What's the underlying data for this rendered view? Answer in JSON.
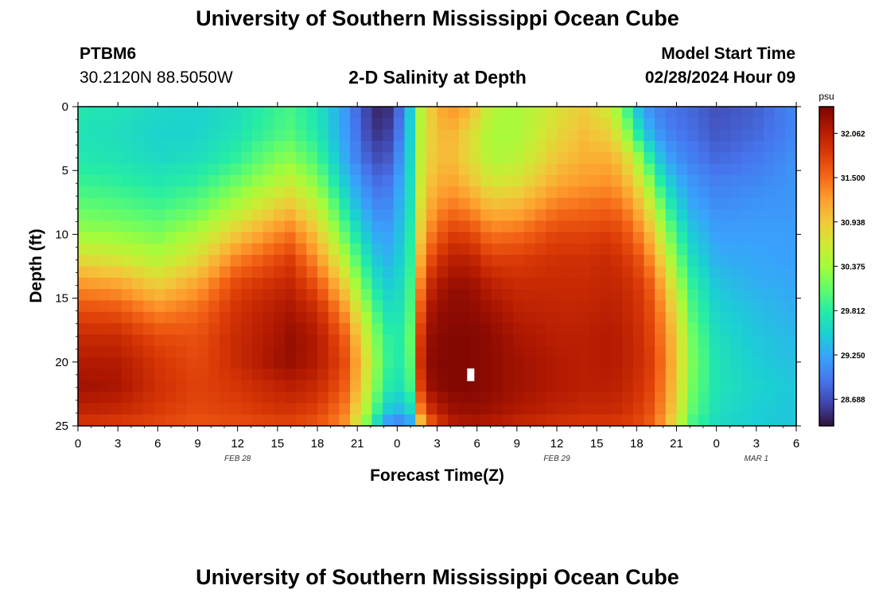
{
  "page": {
    "title_top": "University of Southern Mississippi Ocean Cube",
    "title_bottom": "University of Southern Mississippi Ocean Cube",
    "station_id": "PTBM6",
    "station_coords": "30.2120N  88.5050W",
    "plot_title": "2-D Salinity at Depth",
    "model_start_label": "Model Start Time",
    "model_start_value": "02/28/2024 Hour 09"
  },
  "chart_data": {
    "type": "heatmap",
    "title": "2-D Salinity at Depth",
    "xlabel": "Forecast Time(Z)",
    "ylabel": "Depth (ft)",
    "x_range_hours": [
      0,
      54
    ],
    "y_range_ft": [
      0,
      25
    ],
    "x_ticks": [
      {
        "h": 0,
        "label": "0"
      },
      {
        "h": 3,
        "label": "3"
      },
      {
        "h": 6,
        "label": "6"
      },
      {
        "h": 9,
        "label": "9"
      },
      {
        "h": 12,
        "label": "12"
      },
      {
        "h": 15,
        "label": "15"
      },
      {
        "h": 18,
        "label": "18"
      },
      {
        "h": 21,
        "label": "21"
      },
      {
        "h": 24,
        "label": "0"
      },
      {
        "h": 27,
        "label": "3"
      },
      {
        "h": 30,
        "label": "6"
      },
      {
        "h": 33,
        "label": "9"
      },
      {
        "h": 36,
        "label": "12"
      },
      {
        "h": 39,
        "label": "15"
      },
      {
        "h": 42,
        "label": "18"
      },
      {
        "h": 45,
        "label": "21"
      },
      {
        "h": 48,
        "label": "0"
      },
      {
        "h": 51,
        "label": "3"
      },
      {
        "h": 54,
        "label": "6"
      }
    ],
    "date_labels": [
      {
        "h": 12,
        "label": "FEB 28"
      },
      {
        "h": 36,
        "label": "FEB 29"
      },
      {
        "h": 51,
        "label": "MAR 1"
      }
    ],
    "y_ticks": [
      0,
      5,
      10,
      15,
      20,
      25
    ],
    "colorbar": {
      "unit": "psu",
      "range": [
        28.35,
        32.4
      ],
      "tick_values": [
        32.062,
        31.5,
        30.938,
        30.375,
        29.812,
        29.25,
        28.688
      ],
      "tick_labels": [
        "32.062",
        "31.500",
        "30.938",
        "30.375",
        "29.812",
        "29.250",
        "28.688"
      ]
    },
    "colorscale": [
      "#30123b",
      "#4145ab",
      "#4675ed",
      "#39a2fc",
      "#1bcfd4",
      "#24eca6",
      "#61fc6c",
      "#a4fc3b",
      "#d1e834",
      "#f3c63a",
      "#fe9b2d",
      "#f36315",
      "#d93806",
      "#b11901",
      "#7a0402"
    ],
    "grid": {
      "cols": 66,
      "rows": 28
    },
    "profiles_hours": [
      0,
      3,
      6,
      9,
      12,
      15,
      16,
      18,
      20,
      21,
      22,
      23,
      24,
      25,
      25.5,
      26,
      27,
      28,
      29.5,
      31,
      33,
      36,
      38,
      40,
      41,
      42,
      43,
      44,
      45,
      46,
      48,
      51,
      54
    ],
    "profiles_depth_ft": [
      0,
      2,
      4,
      6,
      8,
      10,
      12,
      14,
      16,
      18,
      20,
      22,
      24,
      25
    ],
    "salinity_profiles": [
      [
        29.75,
        29.7,
        29.75,
        29.9,
        30.1,
        30.35,
        30.8,
        31.3,
        31.7,
        31.95,
        32.1,
        32.2,
        32.0,
        31.8
      ],
      [
        29.7,
        29.65,
        29.7,
        29.85,
        30.05,
        30.3,
        30.7,
        31.2,
        31.65,
        31.95,
        32.1,
        32.15,
        31.95,
        31.75
      ],
      [
        29.6,
        29.55,
        29.6,
        29.75,
        29.95,
        30.2,
        30.5,
        30.9,
        31.35,
        31.7,
        31.85,
        31.9,
        31.8,
        31.7
      ],
      [
        29.55,
        29.55,
        29.65,
        29.85,
        30.1,
        30.45,
        30.8,
        31.2,
        31.5,
        31.65,
        31.7,
        31.75,
        31.7,
        31.6
      ],
      [
        29.65,
        29.7,
        29.85,
        30.15,
        30.5,
        30.95,
        31.4,
        31.75,
        31.9,
        31.95,
        31.95,
        31.85,
        31.75,
        31.65
      ],
      [
        29.9,
        29.95,
        30.2,
        30.5,
        30.9,
        31.35,
        31.7,
        31.95,
        32.1,
        32.15,
        32.2,
        32.0,
        31.85,
        31.7
      ],
      [
        29.95,
        30.0,
        30.25,
        30.6,
        31.0,
        31.45,
        31.8,
        32.0,
        32.15,
        32.25,
        32.25,
        32.05,
        31.85,
        31.7
      ],
      [
        29.7,
        29.75,
        29.95,
        30.25,
        30.6,
        30.95,
        31.3,
        31.65,
        31.95,
        32.1,
        32.1,
        31.95,
        31.75,
        31.6
      ],
      [
        29.2,
        29.2,
        29.3,
        29.5,
        29.8,
        30.1,
        30.5,
        30.9,
        31.3,
        31.6,
        31.7,
        31.6,
        31.4,
        31.3
      ],
      [
        28.85,
        28.9,
        29.0,
        29.2,
        29.4,
        29.7,
        30.0,
        30.35,
        30.7,
        31.0,
        31.15,
        31.05,
        30.8,
        30.6
      ],
      [
        28.55,
        28.6,
        28.75,
        28.95,
        29.15,
        29.35,
        29.6,
        29.85,
        30.15,
        30.4,
        30.55,
        30.45,
        30.2,
        29.9
      ],
      [
        28.4,
        28.5,
        28.65,
        28.85,
        29.0,
        29.15,
        29.3,
        29.5,
        29.7,
        29.9,
        29.95,
        29.85,
        29.5,
        29.1
      ],
      [
        28.75,
        28.85,
        29.0,
        29.15,
        29.25,
        29.35,
        29.45,
        29.55,
        29.65,
        29.75,
        29.75,
        29.65,
        29.3,
        28.9
      ],
      [
        29.5,
        29.55,
        29.6,
        29.65,
        29.7,
        29.8,
        29.85,
        29.95,
        30.0,
        30.1,
        30.05,
        29.95,
        29.55,
        29.1
      ],
      [
        30.2,
        30.25,
        30.3,
        30.35,
        30.45,
        30.55,
        30.7,
        30.9,
        31.1,
        31.35,
        31.5,
        31.3,
        30.9,
        30.3
      ],
      [
        30.7,
        30.7,
        30.75,
        30.85,
        31.0,
        31.2,
        31.5,
        31.8,
        32.05,
        32.2,
        32.25,
        32.15,
        31.7,
        31.2
      ],
      [
        31.1,
        31.0,
        31.0,
        31.1,
        31.3,
        31.55,
        31.85,
        32.1,
        32.25,
        32.3,
        32.35,
        32.3,
        32.0,
        31.7
      ],
      [
        31.3,
        31.1,
        31.05,
        31.2,
        31.45,
        31.8,
        32.05,
        32.25,
        32.3,
        32.35,
        32.35,
        32.35,
        32.2,
        32.0
      ],
      [
        31.1,
        30.8,
        30.8,
        31.0,
        31.35,
        31.75,
        32.05,
        32.25,
        32.3,
        32.35,
        32.35,
        32.35,
        32.25,
        32.1
      ],
      [
        30.5,
        30.4,
        30.45,
        30.7,
        31.05,
        31.45,
        31.8,
        32.05,
        32.2,
        32.3,
        32.3,
        32.3,
        32.2,
        32.05
      ],
      [
        30.4,
        30.4,
        30.5,
        30.75,
        31.1,
        31.5,
        31.8,
        31.95,
        32.05,
        32.15,
        32.2,
        32.2,
        32.1,
        31.95
      ],
      [
        30.7,
        30.8,
        30.95,
        31.15,
        31.45,
        31.75,
        31.9,
        31.95,
        32.0,
        32.05,
        32.1,
        32.1,
        32.0,
        31.85
      ],
      [
        30.9,
        31.0,
        31.1,
        31.25,
        31.5,
        31.75,
        31.9,
        31.95,
        32.0,
        32.05,
        32.05,
        32.05,
        31.95,
        31.8
      ],
      [
        30.6,
        30.85,
        31.1,
        31.3,
        31.55,
        31.8,
        31.95,
        32.0,
        32.05,
        32.1,
        32.1,
        32.05,
        31.95,
        31.8
      ],
      [
        30.1,
        30.45,
        30.9,
        31.15,
        31.45,
        31.7,
        31.85,
        31.95,
        32.0,
        32.05,
        32.05,
        32.0,
        31.9,
        31.75
      ],
      [
        29.4,
        29.8,
        30.4,
        30.8,
        31.15,
        31.45,
        31.7,
        31.85,
        31.9,
        31.95,
        31.95,
        31.9,
        31.8,
        31.7
      ],
      [
        29.1,
        29.3,
        29.8,
        30.3,
        30.7,
        31.05,
        31.35,
        31.6,
        31.7,
        31.75,
        31.8,
        31.75,
        31.65,
        31.55
      ],
      [
        28.95,
        29.05,
        29.3,
        29.7,
        30.1,
        30.45,
        30.8,
        31.1,
        31.3,
        31.4,
        31.45,
        31.4,
        31.3,
        31.2
      ],
      [
        28.9,
        28.95,
        29.1,
        29.35,
        29.6,
        29.9,
        30.2,
        30.5,
        30.75,
        30.9,
        30.95,
        30.9,
        30.8,
        30.65
      ],
      [
        28.85,
        28.9,
        29.0,
        29.15,
        29.3,
        29.5,
        29.7,
        29.9,
        30.05,
        30.2,
        30.25,
        30.2,
        30.1,
        29.95
      ],
      [
        28.7,
        28.75,
        28.85,
        29.0,
        29.1,
        29.2,
        29.3,
        29.45,
        29.55,
        29.65,
        29.7,
        29.7,
        29.65,
        29.6
      ],
      [
        28.8,
        28.85,
        28.95,
        29.05,
        29.15,
        29.2,
        29.25,
        29.3,
        29.4,
        29.45,
        29.5,
        29.55,
        29.5,
        29.5
      ],
      [
        29.05,
        29.05,
        29.1,
        29.15,
        29.15,
        29.2,
        29.2,
        29.25,
        29.3,
        29.35,
        29.4,
        29.45,
        29.45,
        29.45
      ]
    ],
    "missing_cell": {
      "hour": 29.5,
      "depth_ft": 21
    }
  }
}
